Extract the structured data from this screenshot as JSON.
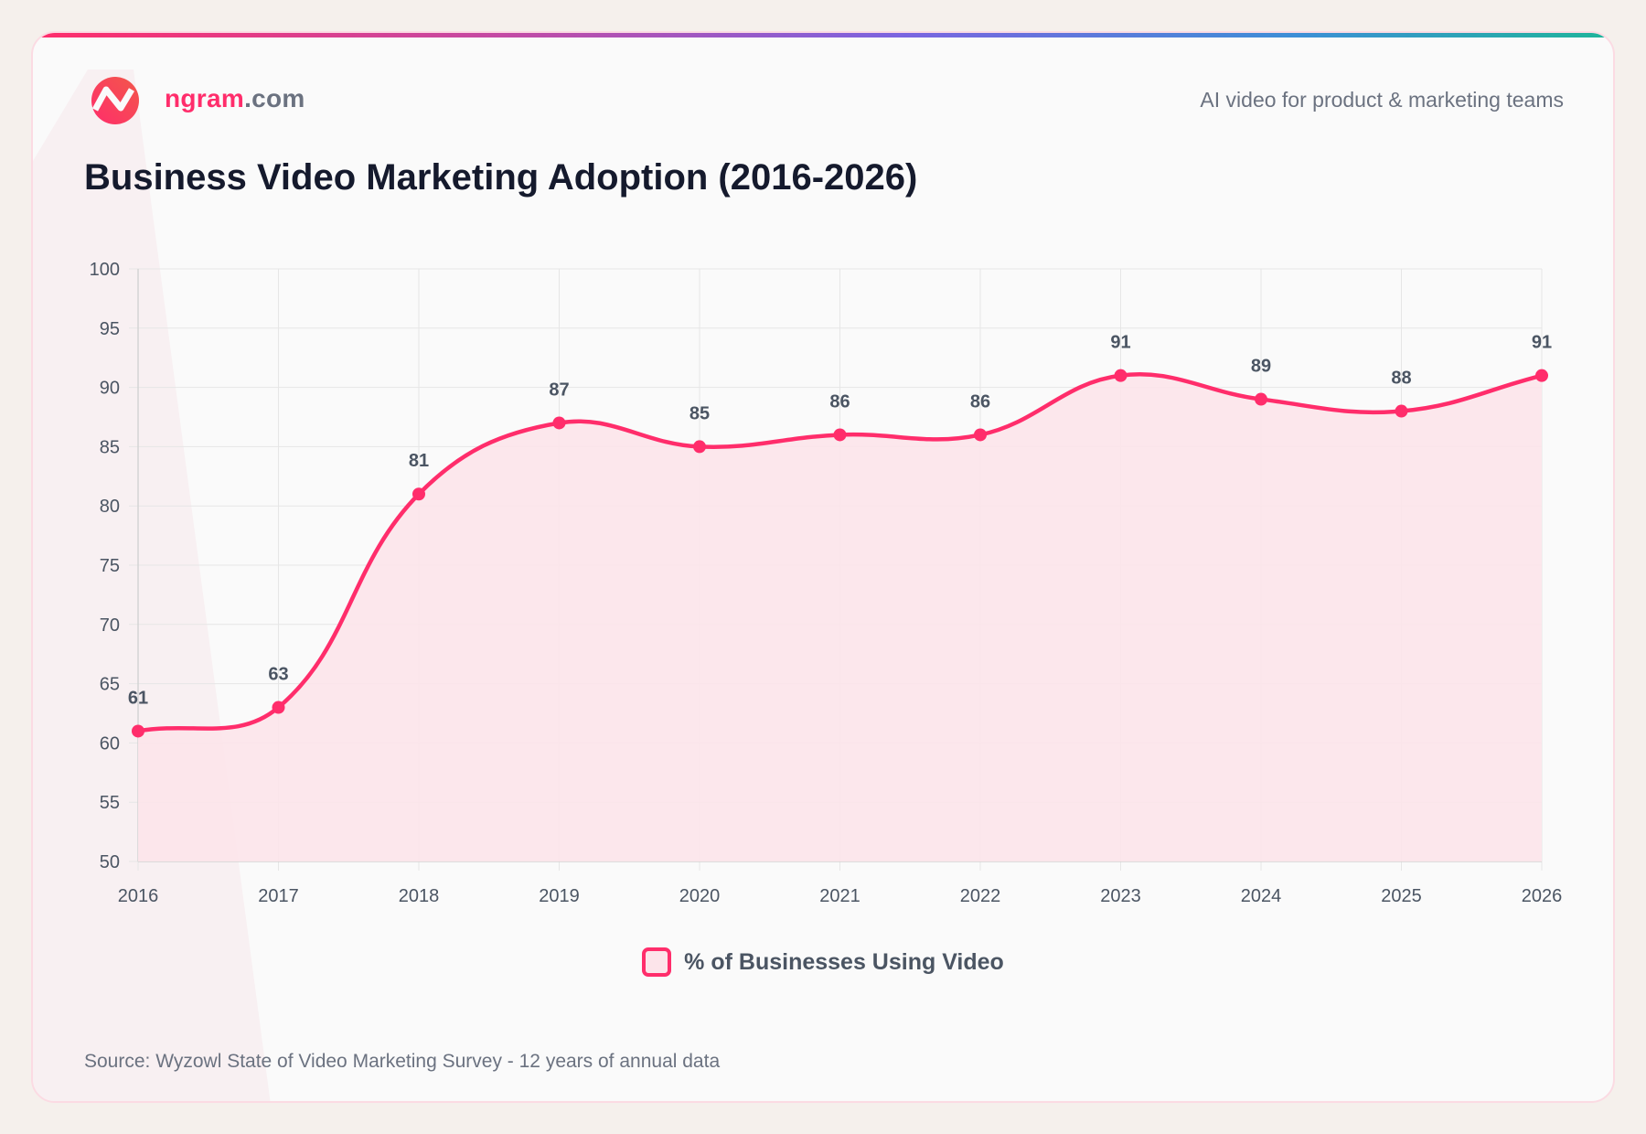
{
  "brand": {
    "name": "ngram",
    "domain": ".com"
  },
  "tagline": "AI video for product & marketing teams",
  "title": "Business Video Marketing Adoption (2016-2026)",
  "source": "Source: Wyzowl State of Video Marketing Survey - 12 years of annual data",
  "colors": {
    "line": "#ff2d6b",
    "fill": "#fce4ea",
    "grid": "#e6e6e6",
    "text": "#4b5563"
  },
  "chart_data": {
    "type": "line",
    "title": "Business Video Marketing Adoption (2016-2026)",
    "categories": [
      "2016",
      "2017",
      "2018",
      "2019",
      "2020",
      "2021",
      "2022",
      "2023",
      "2024",
      "2025",
      "2026"
    ],
    "series": [
      {
        "name": "% of Businesses Using Video",
        "values": [
          61,
          63,
          81,
          87,
          85,
          86,
          86,
          91,
          89,
          88,
          91
        ]
      }
    ],
    "ylim": [
      50,
      100
    ],
    "yticks": [
      50,
      55,
      60,
      65,
      70,
      75,
      80,
      85,
      90,
      95,
      100
    ],
    "grid": true,
    "area_fill": true,
    "smooth": true,
    "data_labels": true,
    "legend": "bottom"
  }
}
